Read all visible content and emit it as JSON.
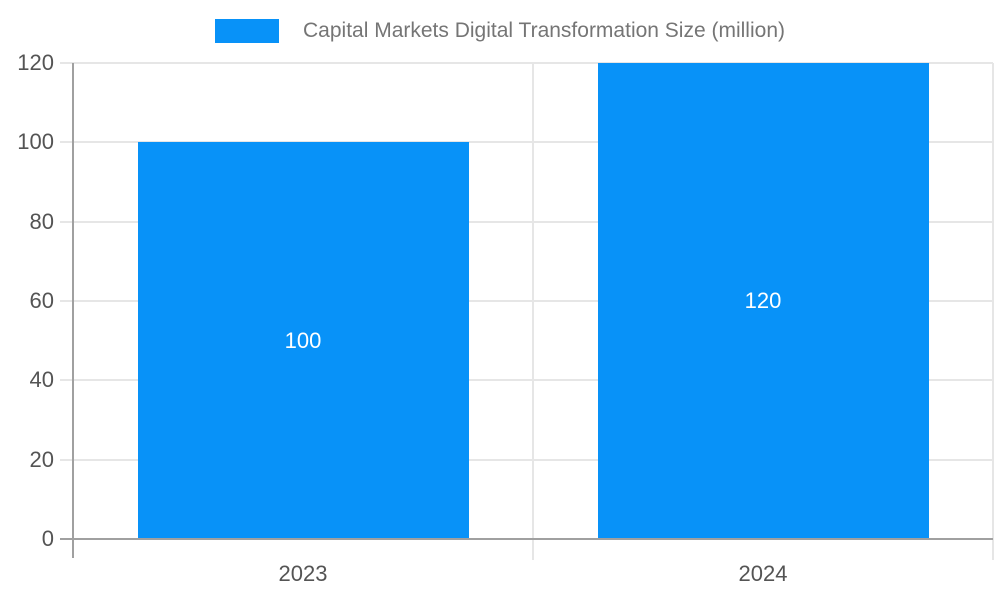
{
  "legend": {
    "label": "Capital Markets Digital Transformation Size (million)",
    "swatch_color": "#0892F8"
  },
  "chart_data": {
    "type": "bar",
    "title": "Capital Markets Digital Transformation Size (million)",
    "categories": [
      "2023",
      "2024"
    ],
    "series": [
      {
        "name": "Capital Markets Digital Transformation Size (million)",
        "values": [
          100,
          120
        ]
      }
    ],
    "data_labels": [
      "100",
      "120"
    ],
    "xlabel": "",
    "ylabel": "",
    "ylim": [
      0,
      120
    ],
    "ytick_step": 20,
    "yticks": [
      0,
      20,
      40,
      60,
      80,
      100,
      120
    ],
    "grid": true,
    "legend_position": "top-center",
    "bar_width_fraction": 0.72
  },
  "colors": {
    "bar": "#0892F8",
    "axis_line": "#A0A0A0",
    "gridline": "#E6E6E6",
    "axis_label_text": "#545454",
    "legend_text": "#757575",
    "data_label_text": "#FFFFFF",
    "background": "#FFFFFF"
  }
}
